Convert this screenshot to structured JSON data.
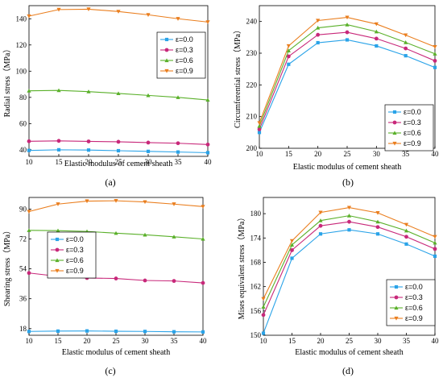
{
  "colors": [
    "#2aa3e8",
    "#c8287a",
    "#5ab02a",
    "#ea7e1e"
  ],
  "markers": [
    "square",
    "circle",
    "triangle-up",
    "triangle-down"
  ],
  "chart_data": [
    {
      "type": "line",
      "panel_label": "(a)",
      "xlabel": "Elastic modulus of cement sheath",
      "ylabel": "Radial stress（MPa）",
      "xlim": [
        10,
        40
      ],
      "ylim": [
        35,
        150
      ],
      "xticks": [
        10,
        15,
        20,
        25,
        30,
        35,
        40
      ],
      "yticks": [
        40,
        60,
        80,
        100,
        120,
        140
      ],
      "legend_position": "right-middle",
      "x": [
        10,
        15,
        20,
        25,
        30,
        35,
        40
      ],
      "series": [
        {
          "name": "ε=0.0",
          "values": [
            39.5,
            40.0,
            39.8,
            39.3,
            38.8,
            38.3,
            37.8
          ]
        },
        {
          "name": "ε=0.3",
          "values": [
            46.5,
            46.8,
            46.4,
            46.1,
            45.5,
            45.0,
            44.0
          ]
        },
        {
          "name": "ε=0.6",
          "values": [
            85.0,
            85.3,
            84.4,
            83.0,
            81.5,
            80.0,
            78.0
          ]
        },
        {
          "name": "ε=0.9",
          "values": [
            142.0,
            147.0,
            147.3,
            145.5,
            143.0,
            140.0,
            137.5
          ]
        }
      ]
    },
    {
      "type": "line",
      "panel_label": "(b)",
      "xlabel": "Elastic modulus of cement sheath",
      "ylabel": "Circumferential stress（MPa）",
      "xlim": [
        10,
        40
      ],
      "ylim": [
        200,
        245
      ],
      "xticks": [
        10,
        15,
        20,
        25,
        30,
        35,
        40
      ],
      "yticks": [
        200,
        210,
        220,
        230,
        240
      ],
      "legend_position": "bottom-right",
      "x": [
        10,
        15,
        20,
        25,
        30,
        35,
        40
      ],
      "series": [
        {
          "name": "ε=0.0",
          "values": [
            205.0,
            226.5,
            233.3,
            234.2,
            232.3,
            229.2,
            225.5
          ]
        },
        {
          "name": "ε=0.3",
          "values": [
            206.0,
            229.0,
            235.8,
            236.6,
            234.6,
            231.5,
            227.6
          ]
        },
        {
          "name": "ε=0.6",
          "values": [
            207.0,
            230.8,
            238.0,
            239.0,
            236.8,
            233.4,
            229.8
          ]
        },
        {
          "name": "ε=0.9",
          "values": [
            208.0,
            232.3,
            240.3,
            241.3,
            239.2,
            235.7,
            232.0
          ]
        }
      ]
    },
    {
      "type": "line",
      "panel_label": "(c)",
      "xlabel": "Elastic modulus of cement sheath",
      "ylabel": "Shearing stress（MPa）",
      "xlim": [
        10,
        40
      ],
      "ylim": [
        14,
        97
      ],
      "xticks": [
        10,
        15,
        20,
        25,
        30,
        35,
        40
      ],
      "yticks": [
        18,
        36,
        54,
        72,
        90
      ],
      "legend_position": "top-left",
      "x": [
        10,
        15,
        20,
        25,
        30,
        35,
        40
      ],
      "series": [
        {
          "name": "ε=0.0",
          "values": [
            16.3,
            16.5,
            16.6,
            16.4,
            16.3,
            16.1,
            16.0
          ]
        },
        {
          "name": "ε=0.3",
          "values": [
            51.5,
            49.5,
            48.5,
            48.2,
            47.0,
            46.7,
            45.5
          ]
        },
        {
          "name": "ε=0.6",
          "values": [
            77.2,
            77.0,
            76.5,
            75.5,
            74.5,
            73.3,
            72.0
          ]
        },
        {
          "name": "ε=0.9",
          "values": [
            88.5,
            93.0,
            94.8,
            95.0,
            94.3,
            93.0,
            91.5
          ]
        }
      ]
    },
    {
      "type": "line",
      "panel_label": "(d)",
      "xlabel": "Elastic modulus of cement sheath",
      "ylabel": "Mises equivalent stress（MPa）",
      "xlim": [
        10,
        40
      ],
      "ylim": [
        150,
        184
      ],
      "xticks": [
        10,
        15,
        20,
        25,
        30,
        35,
        40
      ],
      "yticks": [
        150,
        156,
        162,
        168,
        174,
        180
      ],
      "legend_position": "bottom-right",
      "x": [
        10,
        15,
        20,
        25,
        30,
        35,
        40
      ],
      "series": [
        {
          "name": "ε=0.0",
          "values": [
            150.5,
            169.0,
            175.0,
            176.0,
            175.0,
            172.5,
            169.5
          ]
        },
        {
          "name": "ε=0.3",
          "values": [
            155.0,
            171.0,
            177.0,
            178.0,
            176.7,
            174.3,
            171.3
          ]
        },
        {
          "name": "ε=0.6",
          "values": [
            157.0,
            172.3,
            178.3,
            179.5,
            178.0,
            175.8,
            172.8
          ]
        },
        {
          "name": "ε=0.9",
          "values": [
            159.0,
            173.3,
            180.3,
            181.5,
            180.2,
            177.3,
            174.3
          ]
        }
      ]
    }
  ]
}
